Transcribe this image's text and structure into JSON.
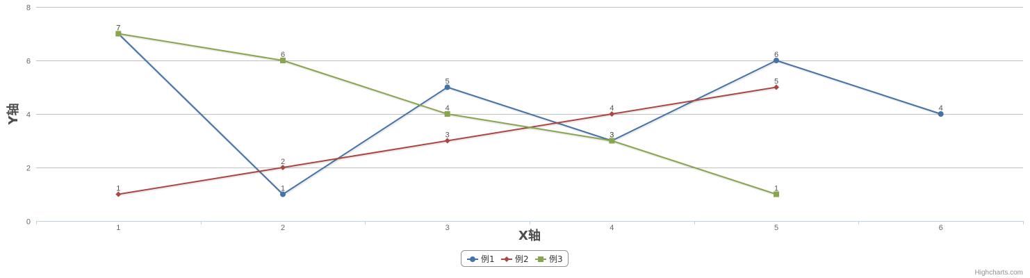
{
  "chart_data": {
    "type": "line",
    "title": "",
    "xlabel": "X轴",
    "ylabel": "Y轴",
    "x": [
      1,
      2,
      3,
      4,
      5,
      6
    ],
    "ylim": [
      0,
      8
    ],
    "yticks": [
      0,
      2,
      4,
      6,
      8
    ],
    "grid": true,
    "legend_position": "bottom-center",
    "series": [
      {
        "name": "例1",
        "color": "#4572A7",
        "marker": "circle",
        "values": [
          7,
          1,
          5,
          3,
          6,
          4
        ]
      },
      {
        "name": "例2",
        "color": "#AA4643",
        "marker": "diamond",
        "values": [
          1,
          2,
          3,
          4,
          5,
          null
        ]
      },
      {
        "name": "例3",
        "color": "#89A54E",
        "marker": "square",
        "values": [
          7,
          6,
          4,
          3,
          1,
          null
        ]
      }
    ]
  },
  "credits": "Highcharts.com"
}
